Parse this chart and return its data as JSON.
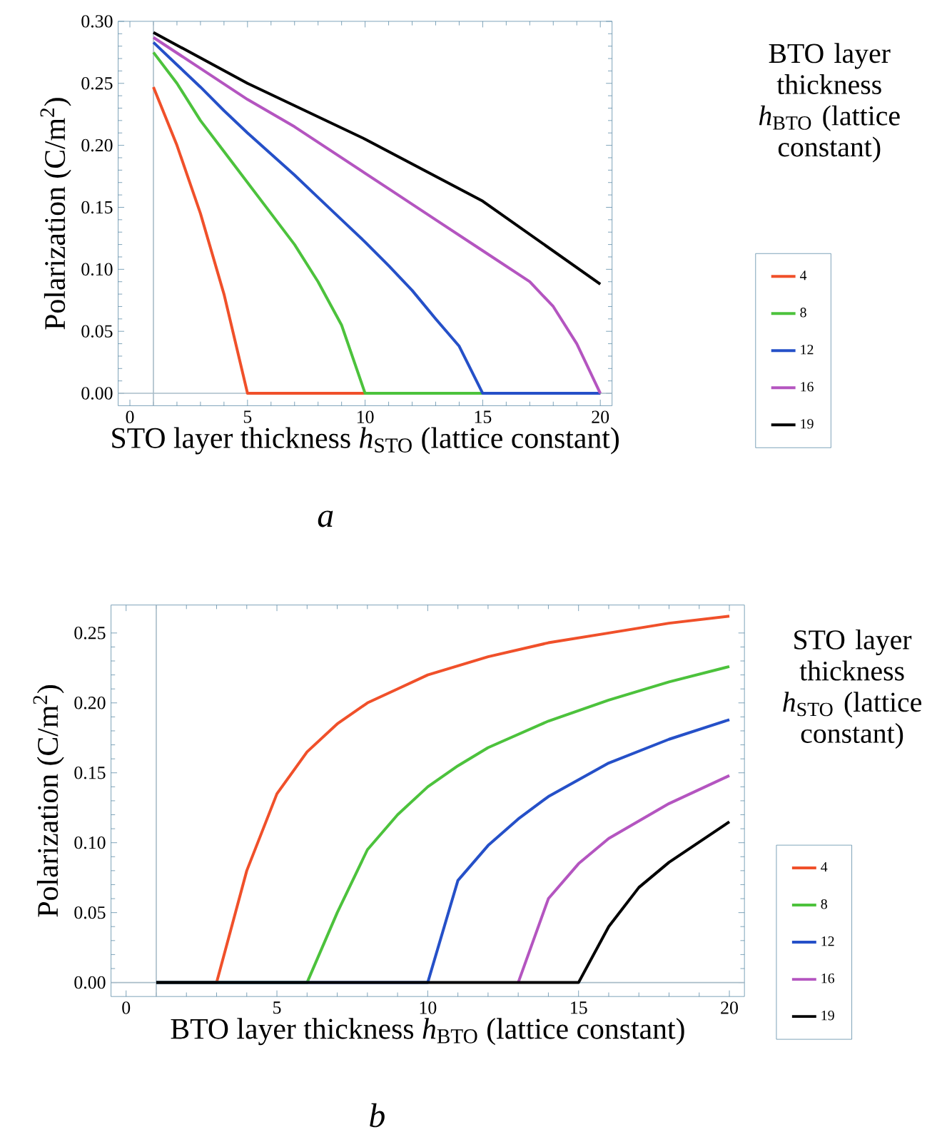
{
  "chart_data": [
    {
      "type": "line",
      "xlabel": "STO layer thickness *h*$_{STO}$ (lattice constant)",
      "ylabel": "Polarization (C/m$^{2}$)",
      "legend_title": "BTO layer thickness *h*$_{BTO}$ (lattice constant)",
      "legend": "right",
      "annotations": [
        "a"
      ],
      "xlim": [
        -0.5,
        20.5
      ],
      "ylim": [
        -0.01,
        0.3
      ],
      "xticks": [
        0,
        5,
        10,
        15,
        20
      ],
      "yticks": [
        {
          "value": 0,
          "label": "0.00"
        },
        {
          "value": 0.05,
          "label": "0.05"
        },
        {
          "value": 0.1,
          "label": "0.10"
        },
        {
          "value": 0.15,
          "label": "0.15"
        },
        {
          "value": 0.2,
          "label": "0.20"
        },
        {
          "value": 0.25,
          "label": "0.25"
        },
        {
          "value": 0.3,
          "label": "0.30"
        }
      ],
      "ref_lines": [
        {
          "axis": "x",
          "value": 1,
          "color": "#a8bcc8"
        },
        {
          "axis": "y",
          "value": 0,
          "color": "#a8bcc8"
        }
      ],
      "series": [
        {
          "name": "4",
          "color": "#f0502a",
          "x": [
            1,
            2,
            3,
            4,
            5,
            20
          ],
          "values": [
            0.247,
            0.2,
            0.145,
            0.08,
            0,
            0
          ]
        },
        {
          "name": "8",
          "color": "#4cc23c",
          "x": [
            1,
            2,
            3,
            4,
            5,
            6,
            7,
            8,
            9,
            10,
            20
          ],
          "values": [
            0.275,
            0.25,
            0.22,
            0.195,
            0.17,
            0.145,
            0.12,
            0.09,
            0.055,
            0,
            0
          ]
        },
        {
          "name": "12",
          "color": "#2550c8",
          "x": [
            1,
            2,
            3,
            4,
            5,
            6,
            7,
            8,
            9,
            10,
            11,
            12,
            13,
            14,
            15,
            20
          ],
          "values": [
            0.283,
            0.265,
            0.247,
            0.228,
            0.21,
            0.193,
            0.176,
            0.158,
            0.14,
            0.122,
            0.103,
            0.083,
            0.06,
            0.038,
            0,
            0
          ]
        },
        {
          "name": "16",
          "color": "#b455c0",
          "x": [
            1,
            3,
            5,
            7,
            9,
            11,
            13,
            15,
            17,
            18,
            19,
            20
          ],
          "values": [
            0.287,
            0.262,
            0.237,
            0.215,
            0.19,
            0.165,
            0.14,
            0.115,
            0.09,
            0.07,
            0.04,
            0
          ]
        },
        {
          "name": "19",
          "color": "#000000",
          "x": [
            1,
            5,
            10,
            15,
            20
          ],
          "values": [
            0.291,
            0.25,
            0.205,
            0.155,
            0.088
          ]
        }
      ]
    },
    {
      "type": "line",
      "xlabel": "BTO layer thickness *h*$_{BTO}$ (lattice constant)",
      "ylabel": "Polarization (C/m$^{2}$)",
      "legend_title": "STO layer thickness *h*$_{STO}$ (lattice constant)",
      "legend": "right",
      "annotations": [
        "b"
      ],
      "xlim": [
        -0.5,
        20.5
      ],
      "ylim": [
        -0.01,
        0.27
      ],
      "xticks": [
        0,
        5,
        10,
        15,
        20
      ],
      "yticks": [
        {
          "value": 0,
          "label": "0.00"
        },
        {
          "value": 0.05,
          "label": "0.05"
        },
        {
          "value": 0.1,
          "label": "0.10"
        },
        {
          "value": 0.15,
          "label": "0.15"
        },
        {
          "value": 0.2,
          "label": "0.20"
        },
        {
          "value": 0.25,
          "label": "0.25"
        }
      ],
      "ref_lines": [
        {
          "axis": "x",
          "value": 1,
          "color": "#a8bcc8"
        },
        {
          "axis": "y",
          "value": 0,
          "color": "#a8bcc8"
        }
      ],
      "series": [
        {
          "name": "4",
          "color": "#f0502a",
          "x": [
            1,
            3,
            4,
            5,
            6,
            7,
            8,
            9,
            10,
            12,
            14,
            16,
            18,
            20
          ],
          "values": [
            0,
            0,
            0.08,
            0.135,
            0.165,
            0.185,
            0.2,
            0.21,
            0.22,
            0.233,
            0.243,
            0.25,
            0.257,
            0.262
          ]
        },
        {
          "name": "8",
          "color": "#4cc23c",
          "x": [
            1,
            6,
            7,
            8,
            9,
            10,
            11,
            12,
            14,
            16,
            18,
            20
          ],
          "values": [
            0,
            0,
            0.05,
            0.095,
            0.12,
            0.14,
            0.155,
            0.168,
            0.187,
            0.202,
            0.215,
            0.226
          ]
        },
        {
          "name": "12",
          "color": "#2550c8",
          "x": [
            1,
            10,
            11,
            12,
            13,
            14,
            16,
            18,
            20
          ],
          "values": [
            0,
            0,
            0.073,
            0.098,
            0.117,
            0.133,
            0.157,
            0.174,
            0.188
          ]
        },
        {
          "name": "16",
          "color": "#b455c0",
          "x": [
            13,
            14,
            15,
            16,
            18,
            20
          ],
          "values": [
            0,
            0.06,
            0.085,
            0.103,
            0.128,
            0.148
          ]
        },
        {
          "name": "19",
          "color": "#000000",
          "x": [
            1,
            15,
            16,
            17,
            18,
            20
          ],
          "values": [
            0,
            0,
            0.04,
            0.068,
            0.086,
            0.115
          ]
        }
      ]
    }
  ]
}
